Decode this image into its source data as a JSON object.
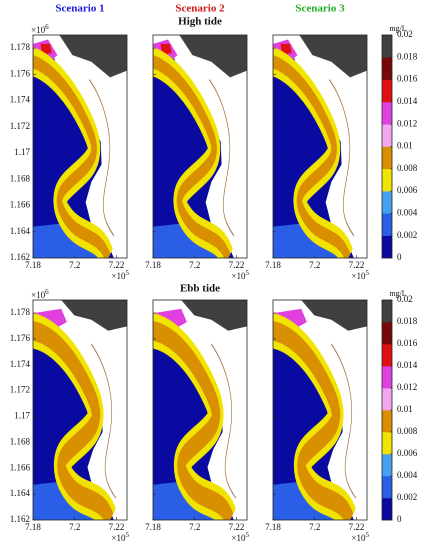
{
  "scenarios": [
    {
      "title": "Scenario 1",
      "color": "#1a1ad6"
    },
    {
      "title": "Scenario 2",
      "color": "#d01818"
    },
    {
      "title": "Scenario 3",
      "color": "#22b022"
    }
  ],
  "rows": [
    {
      "title": null
    },
    {
      "title": "Ebb tide"
    }
  ],
  "top_title": "High tide",
  "axes": {
    "xlim": [
      7.18,
      7.225
    ],
    "xticks": [
      7.18,
      7.2,
      7.22
    ],
    "x_scale": {
      "base": "×10",
      "power": "5"
    },
    "ylim": [
      1.162,
      1.179
    ],
    "yticks": [
      1.162,
      1.164,
      1.166,
      1.168,
      1.17,
      1.172,
      1.174,
      1.176,
      1.178
    ],
    "y_scale": {
      "base": "×10",
      "power": "6"
    }
  },
  "colorbar": {
    "unit": "mg/L",
    "clim": [
      0,
      0.02
    ],
    "ticks": [
      0,
      0.002,
      0.004,
      0.006,
      0.008,
      0.01,
      0.012,
      0.014,
      0.016,
      0.018,
      0.02
    ],
    "colors": [
      "#0a0aa0",
      "#2a5ee6",
      "#44a0f0",
      "#f0e400",
      "#d89000",
      "#f2a8f0",
      "#e040e0",
      "#e01010",
      "#7a0808",
      "#404040"
    ]
  }
}
